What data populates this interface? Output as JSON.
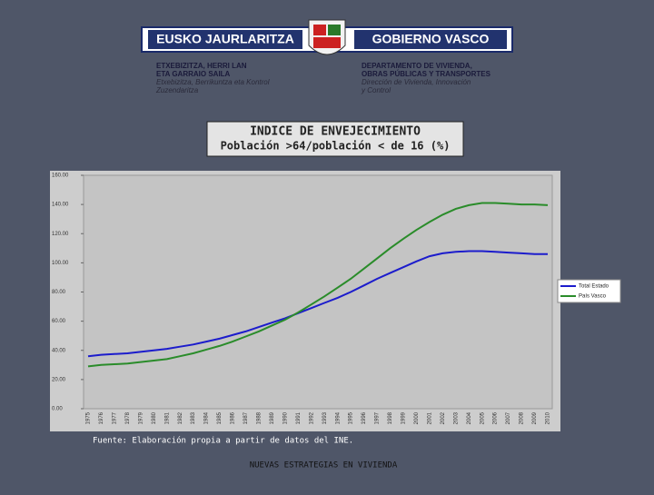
{
  "header": {
    "left": "EUSKO JAURLARITZA",
    "right": "GOBIERNO VASCO",
    "dept_left": [
      "ETXEBIZITZA, HERRI LAN",
      "ETA GARRAIO SAILA"
    ],
    "dept_left_sub": [
      "Etxebizitza, Berrikuntza eta Kontrol",
      "Zuzendaritza"
    ],
    "dept_right": [
      "DEPARTAMENTO DE VIVIENDA,",
      "OBRAS PÚBLICAS Y TRANSPORTES"
    ],
    "dept_right_sub": [
      "Dirección de Vivienda, Innovación",
      "y Control"
    ]
  },
  "chart_data": {
    "type": "line",
    "title": "INDICE DE ENVEJECIMIENTO",
    "subtitle": "Población >64/población < de 16 (%)",
    "categories": [
      "1975",
      "1976",
      "1977",
      "1978",
      "1979",
      "1980",
      "1981",
      "1982",
      "1983",
      "1984",
      "1985",
      "1986",
      "1987",
      "1988",
      "1989",
      "1990",
      "1991",
      "1992",
      "1993",
      "1994",
      "1995",
      "1996",
      "1997",
      "1998",
      "1999",
      "2000",
      "2001",
      "2002",
      "2003",
      "2004",
      "2005",
      "2006",
      "2007",
      "2008",
      "2009",
      "2010"
    ],
    "series": [
      {
        "name": "Total Estado",
        "color": "#1c1ccc",
        "values": [
          36,
          37,
          37.5,
          38,
          39,
          40,
          41,
          42.5,
          44,
          46,
          48,
          50.5,
          53,
          56,
          59,
          62,
          65.5,
          69,
          72.5,
          76,
          80,
          84.5,
          89,
          93,
          97,
          101,
          104.5,
          106.5,
          107.5,
          108,
          108,
          107.5,
          107,
          106.5,
          106,
          106
        ]
      },
      {
        "name": "País Vasco",
        "color": "#2a8c2a",
        "values": [
          29,
          30,
          30.5,
          31,
          32,
          33,
          34,
          36,
          38,
          40.5,
          43,
          46,
          49.5,
          53,
          57,
          61,
          66,
          71.5,
          77,
          83,
          89,
          96,
          103,
          110,
          116.5,
          122.5,
          128,
          133,
          137,
          139.5,
          141,
          141,
          140.5,
          140,
          140,
          139.5
        ]
      }
    ],
    "ylim": [
      0,
      160
    ],
    "yticks": [
      {
        "value": 0,
        "label": "0.00"
      },
      {
        "value": 20,
        "label": "20.00"
      },
      {
        "value": 40,
        "label": "40.00"
      },
      {
        "value": 60,
        "label": "60.00"
      },
      {
        "value": 80,
        "label": "80.00"
      },
      {
        "value": 100,
        "label": "100.00"
      },
      {
        "value": 120,
        "label": "120.00"
      },
      {
        "value": 140,
        "label": "140.00"
      },
      {
        "value": 160,
        "label": "160.00"
      }
    ],
    "legend": "right"
  },
  "source": "Fuente: Elaboración propia a partir de datos del INE.",
  "footer": "NUEVAS ESTRATEGIAS EN VIVIENDA"
}
